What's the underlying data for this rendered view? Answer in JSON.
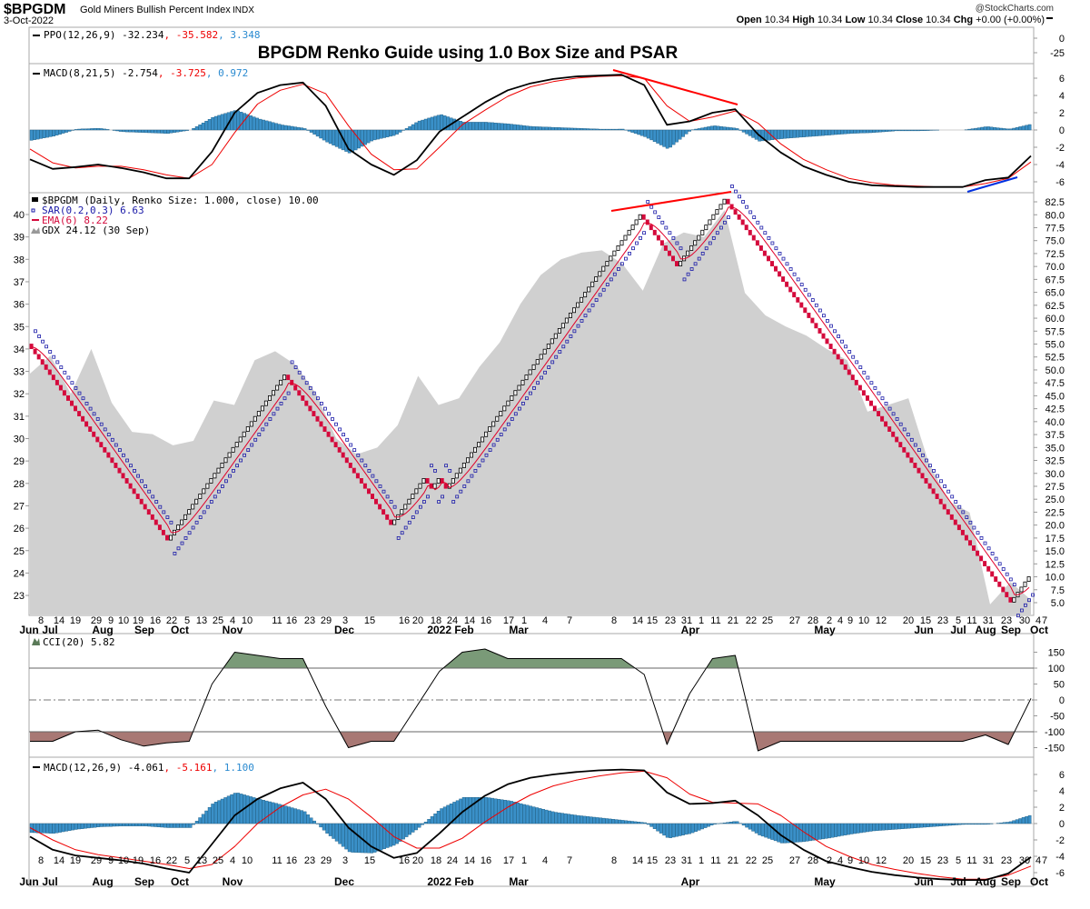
{
  "header": {
    "symbol": "$BPGDM",
    "name": "Gold Miners Bullish Percent Index",
    "exchange": "INDX",
    "date": "3-Oct-2022",
    "watermark": "@StockCharts.com",
    "ohlc": [
      {
        "label": "Open",
        "value": "10.34"
      },
      {
        "label": "High",
        "value": "10.34"
      },
      {
        "label": "Low",
        "value": "10.34"
      },
      {
        "label": "Close",
        "value": "10.34"
      },
      {
        "label": "Chg",
        "value": "+0.00 (+0.00%)"
      }
    ]
  },
  "annotation_title": "BPGDM Renko Guide using 1.0 Box Size and PSAR",
  "colors": {
    "up_brick": "#ffffff",
    "down_brick": "#d40a3c",
    "sar": "#1a1aa8",
    "ema": "#e0002a",
    "gdx_area": "#d0d0d0",
    "hist": "#3a90c8",
    "cci_pos": "#7a9a78",
    "cci_neg": "#a87874",
    "trend_red": "#ff0000",
    "trend_blue": "#0030e0"
  },
  "panels": {
    "ppo": {
      "name": "PPO(12,26,9)",
      "v1": "-32.234",
      "v2": "-35.582",
      "v3": "3.348",
      "ticks": [
        "0",
        "-25"
      ]
    },
    "macd_top": {
      "name": "MACD(8,21,5)",
      "v1": "-2.754",
      "v2": "-3.725",
      "v3": "0.972",
      "ticks": [
        "6",
        "4",
        "2",
        "0",
        "-2",
        "-4",
        "-6"
      ]
    },
    "main": {
      "legend": [
        "$BPGDM (Daily, Renko Size: 1.000, close) 10.00",
        "SAR(0.2,0.3) 6.63",
        "EMA(6) 8.22",
        "GDX 24.12 (30 Sep)"
      ],
      "right_ticks": [
        "82.5",
        "80.0",
        "77.5",
        "75.0",
        "72.5",
        "70.0",
        "67.5",
        "65.0",
        "62.5",
        "60.0",
        "57.5",
        "55.0",
        "52.5",
        "50.0",
        "47.5",
        "45.0",
        "42.5",
        "40.0",
        "37.5",
        "35.0",
        "32.5",
        "30.0",
        "27.5",
        "25.0",
        "22.5",
        "20.0",
        "17.5",
        "15.0",
        "12.5",
        "10.0",
        "7.5",
        "5.0"
      ],
      "left_ticks": [
        "40",
        "39",
        "38",
        "37",
        "36",
        "35",
        "34",
        "33",
        "32",
        "31",
        "30",
        "29",
        "28",
        "27",
        "26",
        "25",
        "24",
        "23"
      ]
    },
    "cci": {
      "name": "CCI(20) 5.82",
      "ticks": [
        "150",
        "100",
        "50",
        "0",
        "-50",
        "-100",
        "-150"
      ]
    },
    "macd_bottom": {
      "name": "MACD(12,26,9)",
      "v1": "-4.061",
      "v2": "-5.161",
      "v3": "1.100",
      "ticks": [
        "6",
        "4",
        "2",
        "0",
        "-2",
        "-4",
        "-6"
      ]
    }
  },
  "x_axis": {
    "days": [
      "8",
      "14",
      "19",
      "29",
      "9",
      "10",
      "19",
      "16",
      "22",
      "5",
      "13",
      "25",
      "4",
      "10",
      "11",
      "16",
      "23",
      "29",
      "3",
      "15",
      "16",
      "20",
      "18",
      "24",
      "14",
      "16",
      "17",
      "1",
      "4",
      "7",
      "8",
      "14",
      "15",
      "23",
      "31",
      "1",
      "11",
      "21",
      "22",
      "25",
      "27",
      "28",
      "2",
      "4",
      "9",
      "10",
      "12",
      "20",
      "15",
      "23",
      "5",
      "11",
      "31",
      "23",
      "30",
      "4",
      "7"
    ],
    "months": [
      "Jun",
      "Jul",
      "Aug",
      "Sep",
      "Oct",
      "Nov",
      "Dec",
      "2022 Feb",
      "Mar",
      "Apr",
      "May",
      "Jun",
      "Jul",
      "Aug",
      "Sep",
      "Oct"
    ]
  },
  "chart_data": [
    {
      "type": "renko",
      "title": "$BPGDM (Daily, Renko Size: 1.000, close)",
      "box_size": 1.0,
      "turning_points": [
        55,
        17,
        49,
        20,
        29,
        27,
        29,
        27,
        80,
        70,
        83,
        5,
        10
      ],
      "y_range_right": [
        5,
        82.5
      ],
      "overlays": [
        "SAR(0.2,0.3)",
        "EMA(6)"
      ],
      "gdx": {
        "name": "GDX",
        "y_range_left": [
          23,
          40
        ],
        "values": [
          32.9,
          33.7,
          32.0,
          34.0,
          31.6,
          30.3,
          30.2,
          29.7,
          29.9,
          31.7,
          31.5,
          33.5,
          33.9,
          33.3,
          32.0,
          30.0,
          29.3,
          29.6,
          30.6,
          32.8,
          31.5,
          31.8,
          33.2,
          34.3,
          36.0,
          37.3,
          38.0,
          38.3,
          38.4,
          37.8,
          36.6,
          38.7,
          39.2,
          39.0,
          40.2,
          36.5,
          35.5,
          35.0,
          34.6,
          34.0,
          33.5,
          31.2,
          31.5,
          31.8,
          28.9,
          27.2,
          26.7,
          22.6,
          23.6,
          22.8
        ]
      }
    },
    {
      "type": "line",
      "name": "MACD(8,21,5)",
      "ylim": [
        -7,
        7
      ],
      "macd": [
        -3.4,
        -4.5,
        -4.3,
        -4.0,
        -4.4,
        -4.9,
        -5.6,
        -5.6,
        -2.5,
        2.0,
        4.3,
        5.2,
        5.5,
        2.8,
        -2.2,
        -4.0,
        -5.2,
        -3.5,
        -0.2,
        1.5,
        3.2,
        4.6,
        5.4,
        5.9,
        6.2,
        6.3,
        6.4,
        5.2,
        0.6,
        1.0,
        2.0,
        2.4,
        -0.5,
        -2.6,
        -4.2,
        -5.2,
        -6.0,
        -6.4,
        -6.5,
        -6.6,
        -6.6,
        -6.6,
        -5.8,
        -5.5,
        -3.0
      ],
      "signal": [
        -2.2,
        -3.8,
        -4.4,
        -4.2,
        -4.2,
        -4.6,
        -5.2,
        -5.6,
        -4.0,
        -0.3,
        3.0,
        4.6,
        5.3,
        4.2,
        0.5,
        -2.8,
        -4.6,
        -4.5,
        -2.0,
        0.6,
        2.3,
        3.9,
        5.0,
        5.6,
        6.0,
        6.2,
        6.3,
        6.0,
        2.8,
        1.0,
        1.5,
        2.2,
        0.8,
        -1.6,
        -3.4,
        -4.6,
        -5.6,
        -6.1,
        -6.4,
        -6.5,
        -6.6,
        -6.6,
        -6.2,
        -5.6,
        -3.7
      ]
    },
    {
      "type": "line",
      "name": "CCI(20)",
      "ylim": [
        -175,
        175
      ],
      "bands": [
        100,
        0,
        -100
      ],
      "values": [
        -130,
        -130,
        -100,
        -95,
        -125,
        -145,
        -135,
        -130,
        50,
        150,
        140,
        130,
        130,
        -20,
        -150,
        -130,
        -130,
        -20,
        90,
        150,
        160,
        130,
        130,
        130,
        130,
        130,
        130,
        80,
        -140,
        20,
        130,
        140,
        -160,
        -130,
        -130,
        -130,
        -130,
        -130,
        -130,
        -130,
        -130,
        -130,
        -110,
        -140,
        5
      ]
    },
    {
      "type": "line",
      "name": "MACD(12,26,9)",
      "ylim": [
        -7,
        7
      ],
      "macd": [
        -1.6,
        -3.2,
        -3.9,
        -4.2,
        -4.5,
        -4.9,
        -5.5,
        -6.0,
        -2.5,
        1.0,
        3.0,
        4.3,
        5.0,
        3.0,
        -0.5,
        -2.8,
        -4.2,
        -3.6,
        -1.2,
        1.4,
        3.4,
        4.8,
        5.6,
        6.0,
        6.3,
        6.5,
        6.6,
        6.5,
        3.8,
        2.4,
        2.5,
        2.8,
        1.0,
        -1.4,
        -3.2,
        -4.6,
        -5.3,
        -5.9,
        -6.3,
        -6.6,
        -6.8,
        -6.9,
        -6.9,
        -6.1,
        -4.1
      ],
      "signal": [
        -0.5,
        -2.0,
        -3.2,
        -3.8,
        -4.2,
        -4.6,
        -5.0,
        -5.5,
        -5.0,
        -2.8,
        0.0,
        2.0,
        3.5,
        4.2,
        3.0,
        0.8,
        -1.6,
        -3.0,
        -3.0,
        -1.8,
        0.2,
        2.0,
        3.5,
        4.6,
        5.3,
        5.8,
        6.2,
        6.4,
        5.6,
        3.6,
        2.6,
        2.5,
        2.4,
        1.0,
        -1.0,
        -2.8,
        -4.0,
        -5.0,
        -5.6,
        -6.1,
        -6.5,
        -6.8,
        -6.8,
        -6.3,
        -5.2
      ]
    }
  ]
}
